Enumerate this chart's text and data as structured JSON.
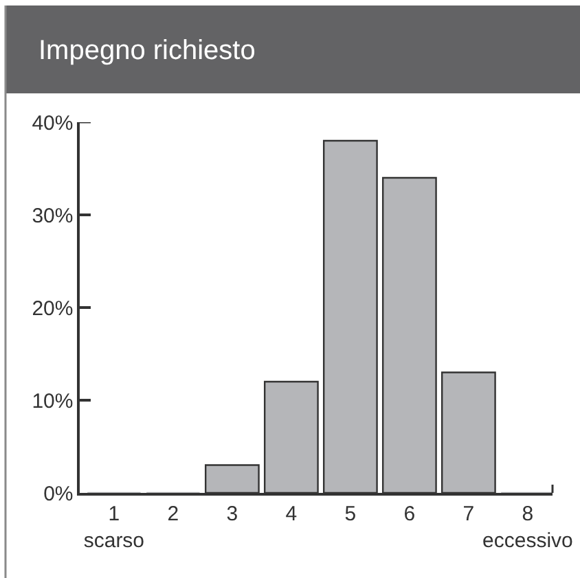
{
  "chart_data": {
    "type": "bar",
    "title": "Impegno richiesto",
    "categories": [
      "1\nscarso",
      "2",
      "3",
      "4",
      "5",
      "6",
      "7",
      "8\neccessivo"
    ],
    "values": [
      0,
      0,
      3,
      12,
      38,
      34,
      13,
      0
    ],
    "color": "#b5b6b9",
    "ylim": [
      0,
      40
    ],
    "yticks": [
      {
        "value": 0,
        "label": "0%"
      },
      {
        "value": 10,
        "label": "10%"
      },
      {
        "value": 20,
        "label": "20%"
      },
      {
        "value": 30,
        "label": "30%"
      },
      {
        "value": 40,
        "label": "40%"
      }
    ]
  }
}
